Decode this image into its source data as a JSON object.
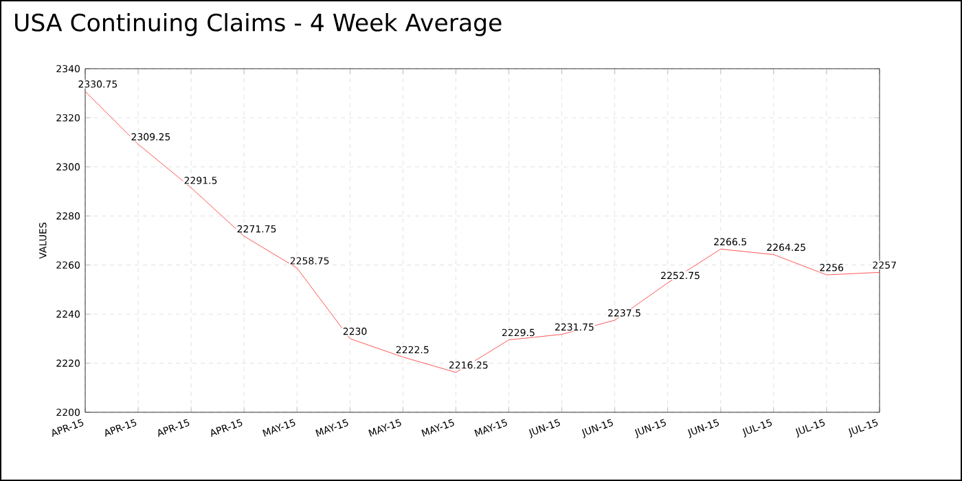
{
  "chart_data": {
    "type": "line",
    "title": "USA Continuing Claims - 4 Week Average",
    "ylabel": "VALUES",
    "categories": [
      "APR-15",
      "APR-15",
      "APR-15",
      "APR-15",
      "MAY-15",
      "MAY-15",
      "MAY-15",
      "MAY-15",
      "MAY-15",
      "JUN-15",
      "JUN-15",
      "JUN-15",
      "JUN-15",
      "JUL-15",
      "JUL-15",
      "JUL-15"
    ],
    "values": [
      2330.75,
      2309.25,
      2291.5,
      2271.75,
      2258.75,
      2230,
      2222.5,
      2216.25,
      2229.5,
      2231.75,
      2237.5,
      2252.75,
      2266.5,
      2264.25,
      2256,
      2257
    ],
    "color": "#ff2a2a",
    "ylim": [
      2200,
      2340
    ],
    "yticks": [
      2200,
      2220,
      2240,
      2260,
      2280,
      2300,
      2320,
      2340
    ],
    "grid": true,
    "marker": "none",
    "line_style": "solid",
    "data_labels": true
  }
}
